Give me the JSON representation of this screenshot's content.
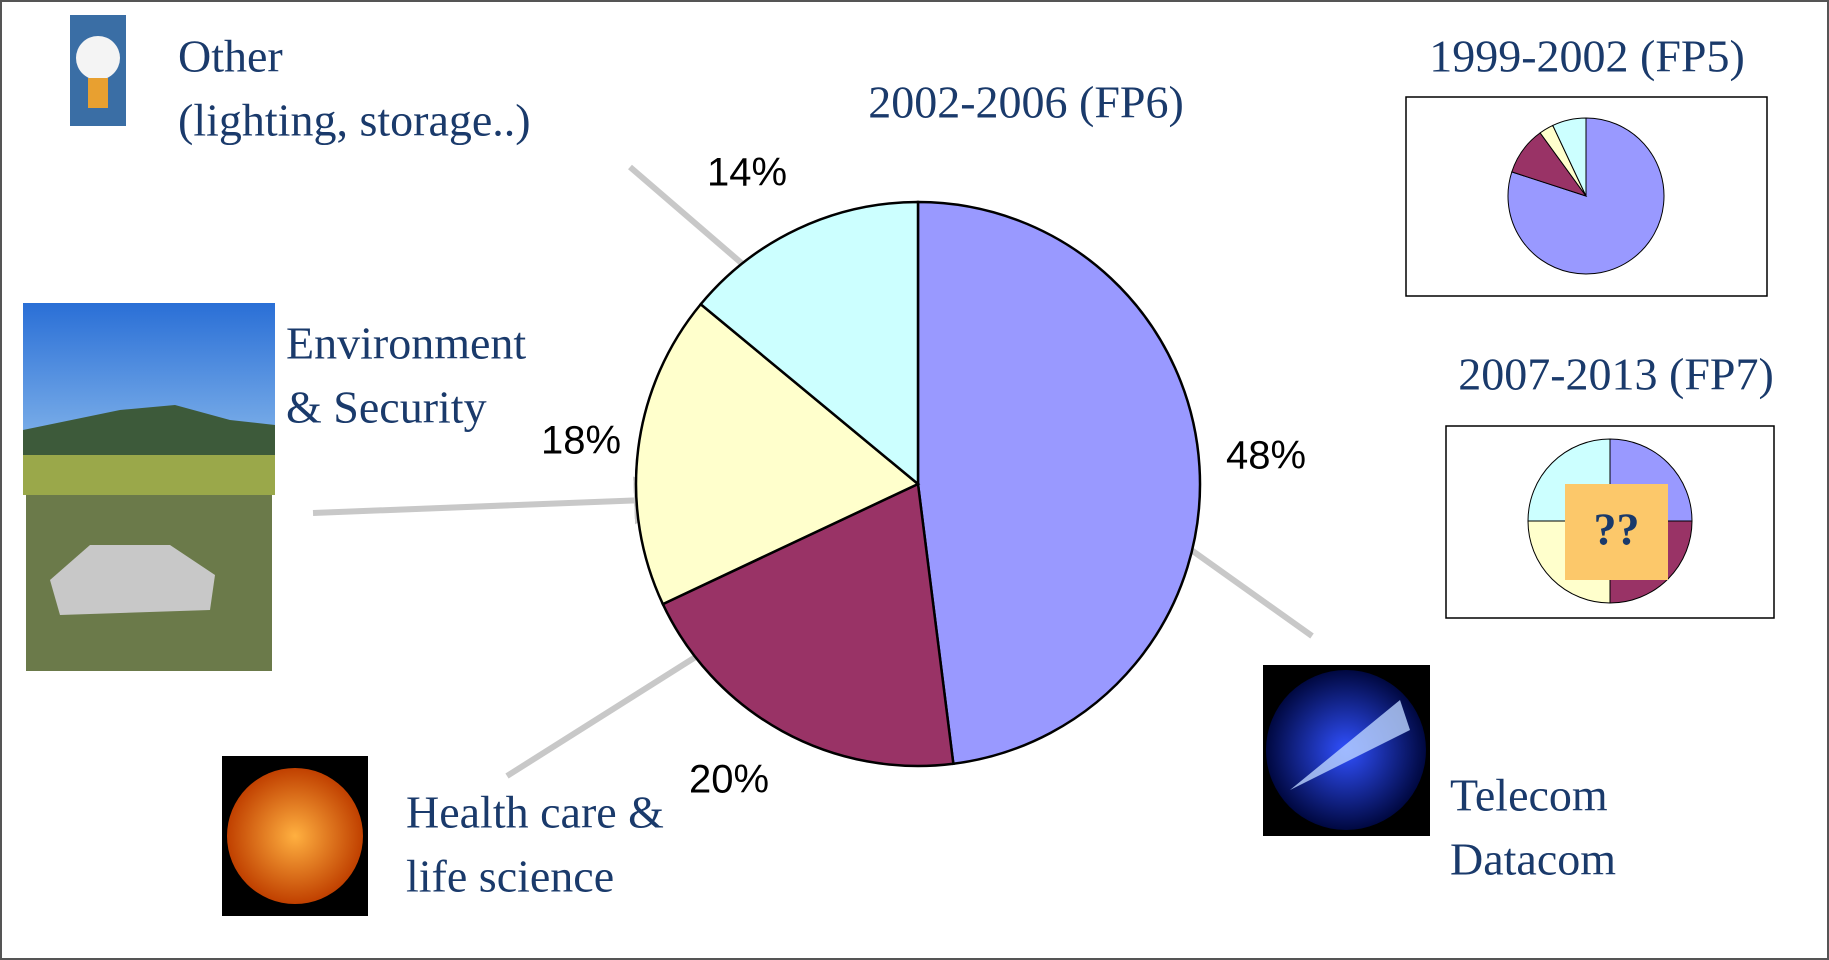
{
  "chart_data": [
    {
      "type": "pie",
      "title": "2002-2006 (FP6)",
      "categories": [
        [
          "Telecom",
          "Datacom"
        ],
        [
          "Health care &",
          "life science"
        ],
        [
          "Environment",
          "& Security"
        ],
        [
          "Other",
          "(lighting, storage..)"
        ]
      ],
      "values": [
        48,
        20,
        18,
        14
      ],
      "value_labels": [
        "48%",
        "20%",
        "18%",
        "14%"
      ],
      "colors": [
        "#9999ff",
        "#993366",
        "#ffffcc",
        "#ccffff"
      ]
    },
    {
      "type": "pie",
      "title": "1999-2002 (FP5)",
      "values": [
        80,
        10,
        3,
        7
      ],
      "colors": [
        "#9999ff",
        "#993366",
        "#ffffcc",
        "#ccffff"
      ]
    },
    {
      "type": "pie",
      "title": "2007-2013 (FP7)",
      "values": [
        25,
        25,
        25,
        25
      ],
      "colors": [
        "#9999ff",
        "#993366",
        "#ffffcc",
        "#ccffff"
      ],
      "annotation": "??"
    }
  ]
}
